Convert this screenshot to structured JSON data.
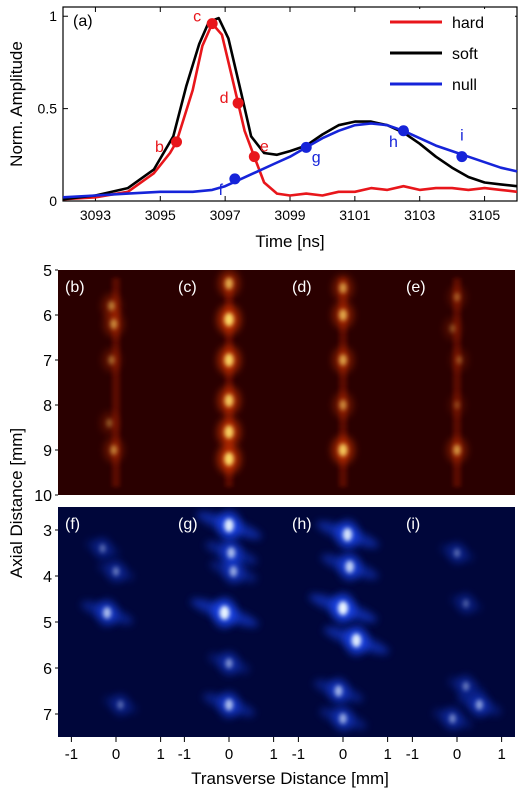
{
  "chart_data": [
    {
      "type": "line",
      "panel_label": "(a)",
      "xlabel": "Time [ns]",
      "ylabel": "Norm. Amplitude",
      "xlim": [
        3092,
        3106
      ],
      "ylim": [
        0,
        1.05
      ],
      "xticks": [
        3093,
        3095,
        3097,
        3099,
        3101,
        3103,
        3105
      ],
      "yticks": [
        0,
        0.5,
        1
      ],
      "ytick_labels": [
        "0",
        "0.5",
        "1"
      ],
      "legend_position": "top-right",
      "series": [
        {
          "name": "hard",
          "color": "#e8161b",
          "x": [
            3092,
            3093,
            3094,
            3094.8,
            3095.3,
            3095.5,
            3096,
            3096.3,
            3096.6,
            3096.9,
            3097.2,
            3097.4,
            3097.6,
            3097.9,
            3098.2,
            3098.6,
            3099,
            3099.5,
            3100,
            3100.5,
            3101,
            3101.5,
            3102,
            3102.5,
            3103,
            3103.5,
            3104,
            3104.5,
            3105,
            3105.5,
            3106
          ],
          "y": [
            0.01,
            0.02,
            0.05,
            0.15,
            0.26,
            0.32,
            0.6,
            0.84,
            0.96,
            0.9,
            0.68,
            0.53,
            0.38,
            0.24,
            0.1,
            0.04,
            0.03,
            0.04,
            0.03,
            0.05,
            0.05,
            0.07,
            0.06,
            0.08,
            0.06,
            0.07,
            0.07,
            0.06,
            0.07,
            0.06,
            0.05
          ]
        },
        {
          "name": "soft",
          "color": "#000000",
          "x": [
            3092,
            3093,
            3094,
            3094.8,
            3095.4,
            3095.8,
            3096.2,
            3096.5,
            3096.8,
            3097.1,
            3097.5,
            3097.8,
            3098.2,
            3098.6,
            3099,
            3099.5,
            3100,
            3100.5,
            3101,
            3101.5,
            3102,
            3102.5,
            3103,
            3103.5,
            3104,
            3104.5,
            3105,
            3105.5,
            3106
          ],
          "y": [
            0.01,
            0.03,
            0.07,
            0.17,
            0.35,
            0.62,
            0.85,
            0.97,
            0.99,
            0.88,
            0.58,
            0.35,
            0.26,
            0.25,
            0.27,
            0.3,
            0.36,
            0.41,
            0.43,
            0.43,
            0.41,
            0.37,
            0.31,
            0.24,
            0.18,
            0.13,
            0.1,
            0.09,
            0.08
          ]
        },
        {
          "name": "null",
          "color": "#1624d9",
          "x": [
            3092,
            3093,
            3094,
            3095,
            3096,
            3096.6,
            3097,
            3097.5,
            3098,
            3098.5,
            3099,
            3099.5,
            3100,
            3100.5,
            3101,
            3101.5,
            3102,
            3102.5,
            3103,
            3103.5,
            3104,
            3104.5,
            3105,
            3105.5,
            3106
          ],
          "y": [
            0.02,
            0.03,
            0.04,
            0.05,
            0.05,
            0.06,
            0.08,
            0.12,
            0.16,
            0.2,
            0.24,
            0.29,
            0.34,
            0.38,
            0.41,
            0.42,
            0.41,
            0.38,
            0.34,
            0.3,
            0.27,
            0.24,
            0.21,
            0.18,
            0.16
          ]
        }
      ],
      "markers": [
        {
          "label": "b",
          "series": "hard",
          "x": 3095.5,
          "y": 0.32,
          "color": "#e8161b"
        },
        {
          "label": "c",
          "series": "hard",
          "x": 3096.6,
          "y": 0.96,
          "color": "#e8161b"
        },
        {
          "label": "d",
          "series": "hard",
          "x": 3097.4,
          "y": 0.53,
          "color": "#e8161b"
        },
        {
          "label": "e",
          "series": "hard",
          "x": 3097.9,
          "y": 0.24,
          "color": "#e8161b"
        },
        {
          "label": "f",
          "series": "null",
          "x": 3097.3,
          "y": 0.12,
          "color": "#1624d9"
        },
        {
          "label": "g",
          "series": "null",
          "x": 3099.5,
          "y": 0.29,
          "color": "#1624d9"
        },
        {
          "label": "h",
          "series": "null",
          "x": 3102.5,
          "y": 0.38,
          "color": "#1624d9"
        },
        {
          "label": "i",
          "series": "null",
          "x": 3104.3,
          "y": 0.24,
          "color": "#1624d9"
        }
      ]
    },
    {
      "type": "heatmap",
      "colormap": "hot",
      "ylabel": "Axial Distance [mm]",
      "ylim": [
        10,
        5
      ],
      "yticks": [
        5,
        6,
        7,
        8,
        9,
        10
      ],
      "panels": [
        {
          "label": "(b)",
          "spots": [
            [
              -0.1,
              5.8,
              0.5
            ],
            [
              -0.05,
              6.2,
              0.55
            ],
            [
              -0.1,
              7.0,
              0.4
            ],
            [
              -0.15,
              8.4,
              0.35
            ],
            [
              -0.05,
              9.0,
              0.5
            ]
          ]
        },
        {
          "label": "(c)",
          "spots": [
            [
              0.0,
              5.3,
              0.7
            ],
            [
              0.0,
              6.1,
              0.95
            ],
            [
              0.0,
              7.0,
              0.9
            ],
            [
              0.0,
              7.9,
              0.85
            ],
            [
              0.0,
              8.6,
              0.9
            ],
            [
              0.0,
              9.2,
              0.95
            ]
          ]
        },
        {
          "label": "(d)",
          "spots": [
            [
              0.0,
              5.4,
              0.6
            ],
            [
              0.0,
              6.0,
              0.7
            ],
            [
              0.0,
              7.0,
              0.65
            ],
            [
              0.0,
              8.0,
              0.55
            ],
            [
              0.0,
              9.0,
              0.85
            ]
          ]
        },
        {
          "label": "(e)",
          "spots": [
            [
              0.0,
              5.6,
              0.35
            ],
            [
              -0.1,
              6.3,
              0.3
            ],
            [
              0.05,
              7.0,
              0.3
            ],
            [
              0.0,
              8.0,
              0.25
            ],
            [
              0.0,
              9.0,
              0.6
            ]
          ]
        }
      ]
    },
    {
      "type": "heatmap",
      "colormap": "blue",
      "xlabel": "Transverse Distance [mm]",
      "ylim": [
        7.5,
        2.5
      ],
      "yticks": [
        3,
        4,
        5,
        6,
        7
      ],
      "xlim": [
        -1.3,
        1.3
      ],
      "xticks": [
        -1,
        0,
        1
      ],
      "panels": [
        {
          "label": "(f)",
          "spots": [
            [
              -0.3,
              3.4,
              0.35
            ],
            [
              0.0,
              3.9,
              0.4
            ],
            [
              -0.2,
              4.8,
              0.7
            ],
            [
              0.1,
              6.8,
              0.35
            ]
          ]
        },
        {
          "label": "(g)",
          "spots": [
            [
              0.0,
              2.9,
              0.95
            ],
            [
              0.05,
              3.5,
              0.7
            ],
            [
              0.1,
              3.9,
              0.6
            ],
            [
              -0.1,
              4.8,
              1.0
            ],
            [
              0.0,
              5.9,
              0.5
            ],
            [
              0.0,
              6.8,
              0.7
            ]
          ]
        },
        {
          "label": "(h)",
          "spots": [
            [
              0.1,
              3.1,
              0.9
            ],
            [
              0.15,
              3.8,
              0.8
            ],
            [
              0.0,
              4.7,
              1.0
            ],
            [
              0.3,
              5.4,
              0.95
            ],
            [
              -0.1,
              6.5,
              0.65
            ],
            [
              0.0,
              7.1,
              0.6
            ]
          ]
        },
        {
          "label": "(i)",
          "spots": [
            [
              0.0,
              3.5,
              0.35
            ],
            [
              0.2,
              4.6,
              0.3
            ],
            [
              0.2,
              6.4,
              0.4
            ],
            [
              0.5,
              6.8,
              0.55
            ],
            [
              -0.1,
              7.1,
              0.45
            ]
          ]
        }
      ]
    }
  ]
}
